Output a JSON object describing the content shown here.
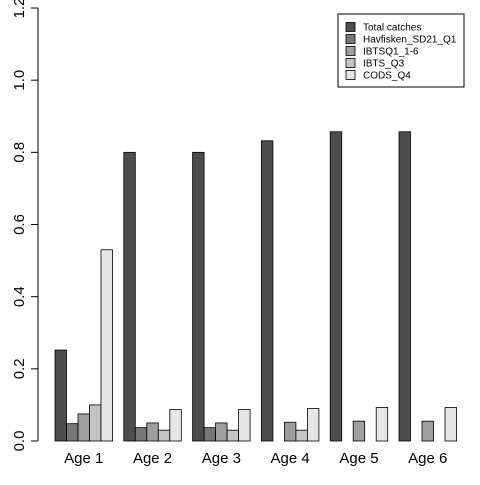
{
  "chart_data": {
    "type": "bar",
    "categories": [
      "Age 1",
      "Age 2",
      "Age 3",
      "Age 4",
      "Age 5",
      "Age 6"
    ],
    "series": [
      {
        "name": "Total catches",
        "color": "#4d4d4d",
        "values": [
          0.252,
          0.8,
          0.8,
          0.832,
          0.857,
          0.857
        ]
      },
      {
        "name": "Havfisken_SD21_Q1",
        "color": "#777777",
        "values": [
          0.048,
          0.037,
          0.037,
          null,
          null,
          null
        ]
      },
      {
        "name": "IBTSQ1_1-6",
        "color": "#9e9e9e",
        "values": [
          0.075,
          0.05,
          0.05,
          0.052,
          0.055,
          0.055
        ]
      },
      {
        "name": "IBTS_Q3",
        "color": "#c4c4c4",
        "values": [
          0.1,
          0.03,
          0.03,
          0.03,
          null,
          null
        ]
      },
      {
        "name": "CODS_Q4",
        "color": "#e6e6e6",
        "values": [
          0.53,
          0.087,
          0.087,
          0.09,
          0.093,
          0.093
        ]
      }
    ],
    "yticks": [
      "0.0",
      "0.2",
      "0.4",
      "0.6",
      "0.8",
      "1.0",
      "1.2"
    ],
    "ylim": [
      0,
      1.2
    ],
    "grid": false,
    "legend_position": "top-right"
  }
}
